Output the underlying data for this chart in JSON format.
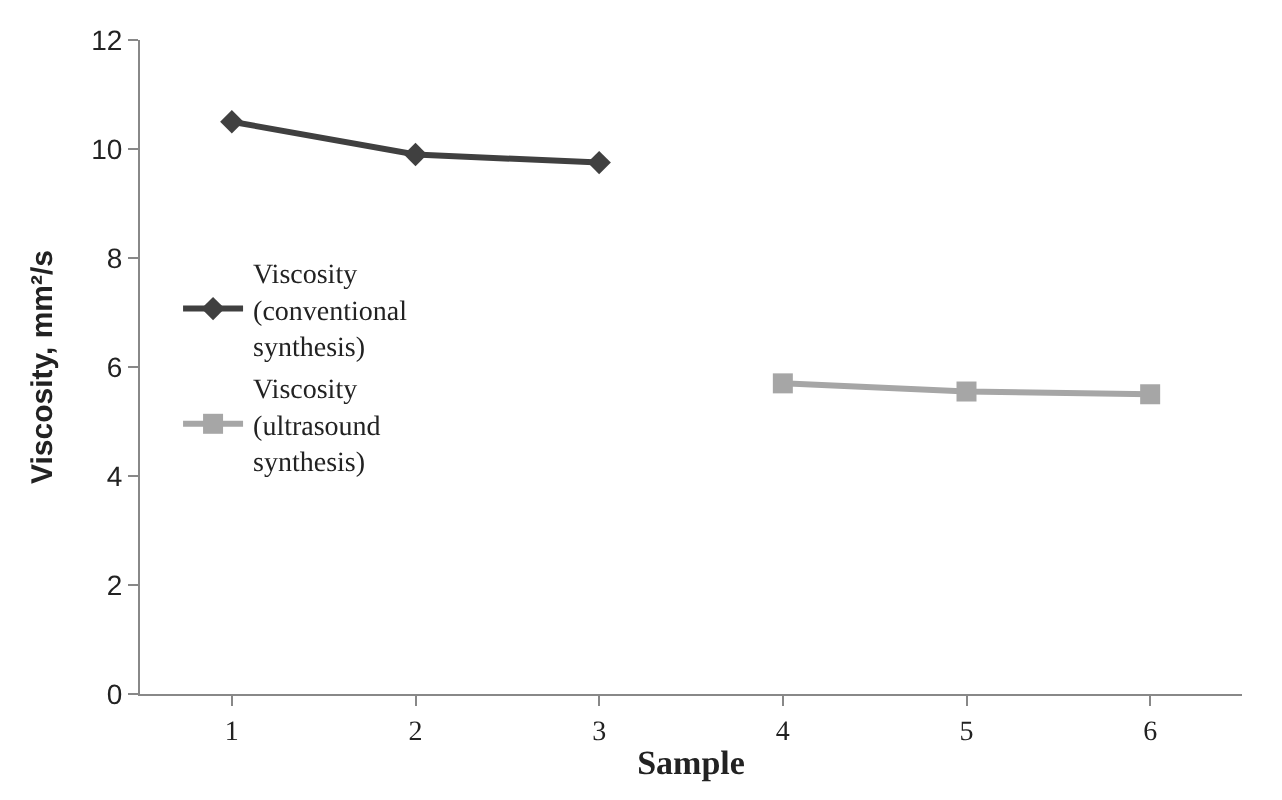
{
  "chart_data": {
    "type": "line",
    "xlabel": "Sample",
    "ylabel": "Viscosity, mm²/s",
    "categories": [
      "1",
      "2",
      "3",
      "4",
      "5",
      "6"
    ],
    "series": [
      {
        "name": "Viscosity (conventional synthesis)",
        "color": "#404040",
        "marker": "diamond",
        "values": [
          10.5,
          9.9,
          9.75,
          null,
          null,
          null
        ]
      },
      {
        "name": "Viscosity (ultrasound synthesis)",
        "color": "#a6a6a6",
        "marker": "square",
        "values": [
          null,
          null,
          null,
          5.7,
          5.55,
          5.5
        ]
      }
    ],
    "ylim": [
      0,
      12
    ],
    "yticks": [
      0,
      2,
      4,
      6,
      8,
      10,
      12
    ],
    "legend": "left"
  }
}
